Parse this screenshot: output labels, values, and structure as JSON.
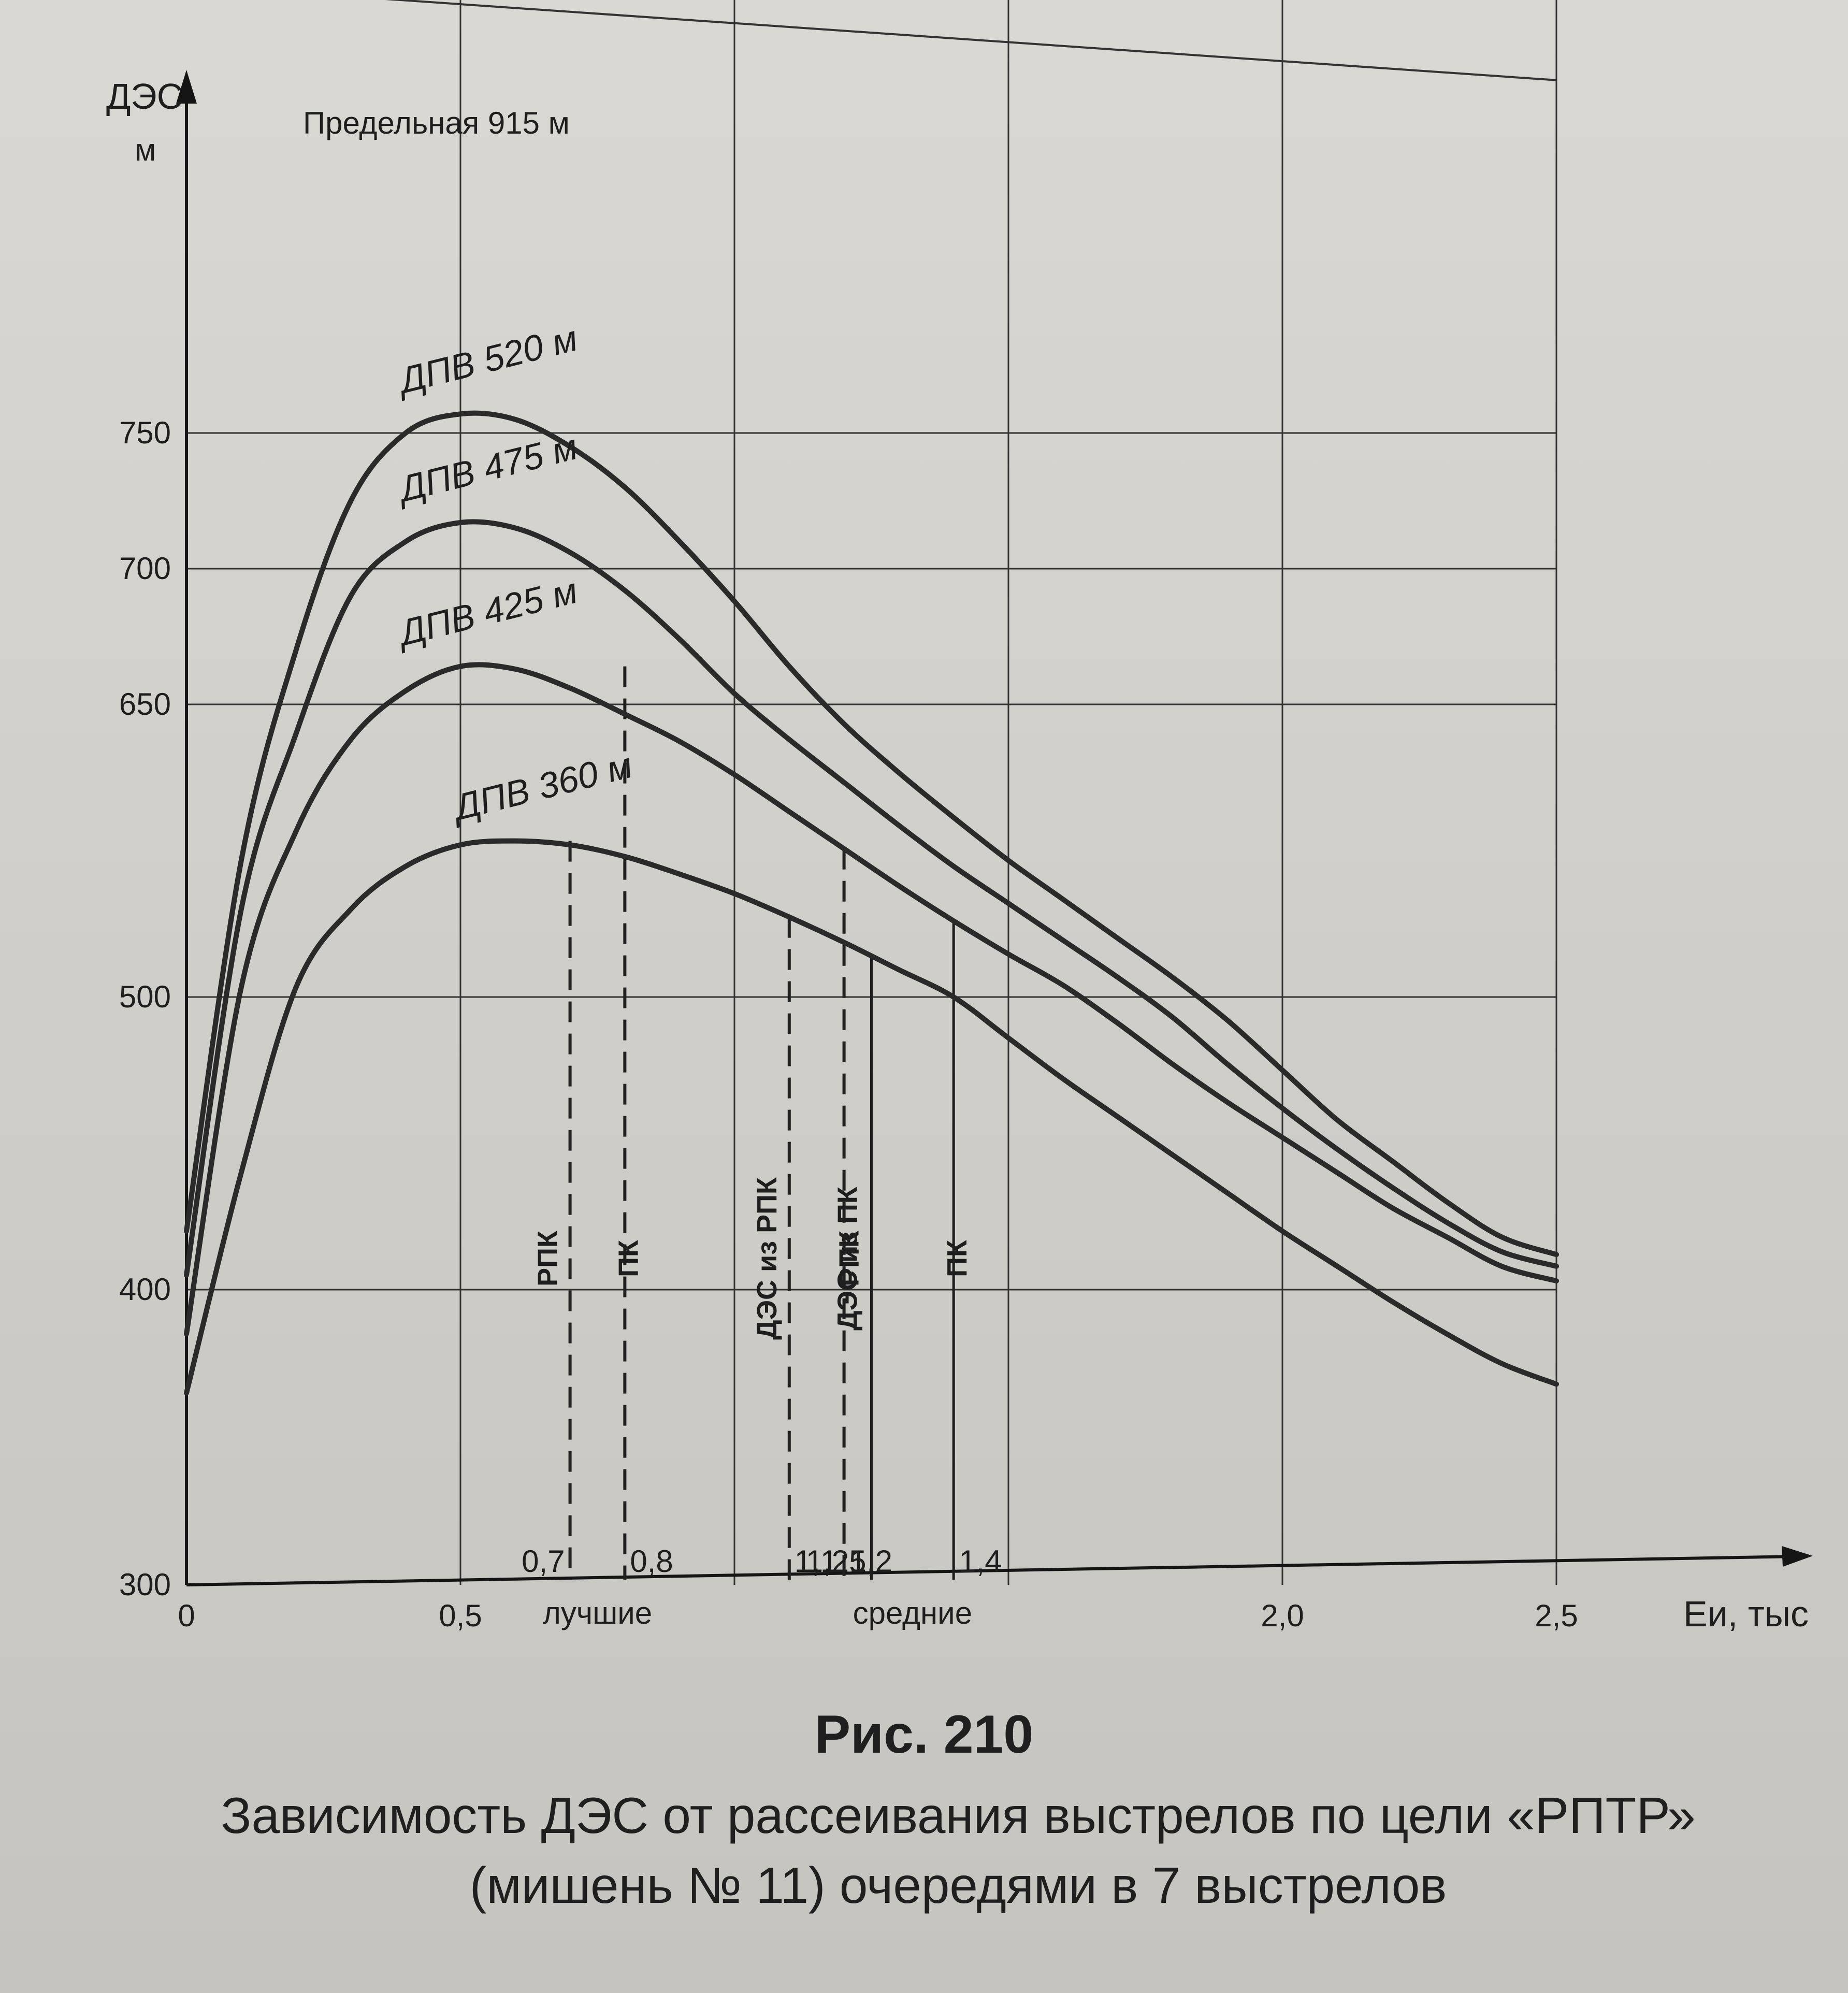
{
  "chart_data": {
    "type": "line",
    "ylabel": "ДЭС",
    "ylabel_unit": "м",
    "xlabel": "Еи, тыс",
    "x_ticks": [
      "0",
      "0,5",
      "2,0",
      "2,5"
    ],
    "y_ticks": [
      "300",
      "400",
      "500",
      "650",
      "700",
      "750"
    ],
    "xlim": [
      0,
      2.5
    ],
    "ylim": [
      300,
      915
    ],
    "grid": true,
    "limit_line": {
      "label": "Предельная 915 м",
      "x": [
        0,
        2.5
      ],
      "y": [
        915,
        880
      ]
    },
    "series": [
      {
        "name": "ДПВ 520 м",
        "x": [
          0,
          0.1,
          0.2,
          0.3,
          0.4,
          0.5,
          0.6,
          0.7,
          0.8,
          0.9,
          1.0,
          1.1,
          1.2,
          1.3,
          1.4,
          1.5,
          1.6,
          1.7,
          1.8,
          1.9,
          2.0,
          2.1,
          2.2,
          2.3,
          2.4,
          2.5
        ],
        "y": [
          420,
          570,
          670,
          725,
          750,
          757,
          755,
          745,
          730,
          710,
          688,
          664,
          640,
          615,
          592,
          570,
          550,
          530,
          510,
          492,
          475,
          458,
          444,
          430,
          418,
          412
        ]
      },
      {
        "name": "ДПВ 475 м",
        "x": [
          0,
          0.1,
          0.2,
          0.3,
          0.4,
          0.5,
          0.6,
          0.7,
          0.8,
          0.9,
          1.0,
          1.1,
          1.2,
          1.3,
          1.4,
          1.5,
          1.6,
          1.7,
          1.8,
          1.9,
          2.0,
          2.1,
          2.2,
          2.3,
          2.4,
          2.5
        ],
        "y": [
          405,
          545,
          635,
          690,
          710,
          717,
          715,
          706,
          692,
          674,
          654,
          632,
          610,
          588,
          567,
          548,
          529,
          510,
          493,
          477,
          462,
          448,
          435,
          423,
          413,
          408
        ]
      },
      {
        "name": "ДПВ 425 м",
        "x": [
          0,
          0.1,
          0.2,
          0.3,
          0.4,
          0.5,
          0.6,
          0.7,
          0.8,
          0.9,
          1.0,
          1.1,
          1.2,
          1.3,
          1.4,
          1.5,
          1.6,
          1.7,
          1.8,
          1.9,
          2.0,
          2.1,
          2.2,
          2.3,
          2.4,
          2.5
        ],
        "y": [
          385,
          505,
          585,
          632,
          655,
          664,
          663,
          656,
          645,
          631,
          614,
          595,
          576,
          557,
          539,
          522,
          506,
          491,
          477,
          464,
          452,
          440,
          428,
          418,
          408,
          403
        ]
      },
      {
        "name": "ДПВ 360 м",
        "x": [
          0,
          0.1,
          0.2,
          0.3,
          0.4,
          0.5,
          0.6,
          0.7,
          0.8,
          0.9,
          1.0,
          1.1,
          1.2,
          1.3,
          1.4,
          1.5,
          1.6,
          1.7,
          1.8,
          1.9,
          2.0,
          2.1,
          2.2,
          2.3,
          2.4,
          2.5
        ],
        "y": [
          365,
          440,
          505,
          545,
          567,
          578,
          580,
          578,
          572,
          563,
          553,
          541,
          528,
          514,
          500,
          486,
          472,
          459,
          446,
          433,
          420,
          408,
          396,
          385,
          375,
          368
        ]
      }
    ],
    "markers": [
      {
        "x": 0.7,
        "x_label": "0,7",
        "y_top": 580,
        "label": "РПК",
        "style": "dashed"
      },
      {
        "x": 0.8,
        "x_label": "0,8",
        "y_top": 664,
        "label": "ПК",
        "style": "dashed"
      },
      {
        "x": 1.1,
        "x_label": "1,1",
        "y_top": 541,
        "label": "ДЭС из РПК",
        "style": "dashed"
      },
      {
        "x": 1.2,
        "x_label": "1,2",
        "y_top": 576,
        "label": "ДЭС из ПК",
        "style": "dashed"
      },
      {
        "x": 1.25,
        "x_label": "1,25",
        "y_top": 521,
        "label": "РПК",
        "style": "solid"
      },
      {
        "x": 1.4,
        "x_label": "1,4",
        "y_top": 539,
        "label": "ПК",
        "style": "solid"
      }
    ],
    "groups": [
      {
        "label": "лучшие",
        "x_range": [
          0.7,
          0.8
        ]
      },
      {
        "label": "средние",
        "x_range": [
          1.25,
          1.4
        ]
      }
    ]
  },
  "figure": {
    "number": "Рис. 210",
    "caption_line1": "Зависимость ДЭС от рассеивания выстрелов по цели «РПТР»",
    "caption_line2": "(мишень № 11) очередями в 7 выстрелов"
  }
}
